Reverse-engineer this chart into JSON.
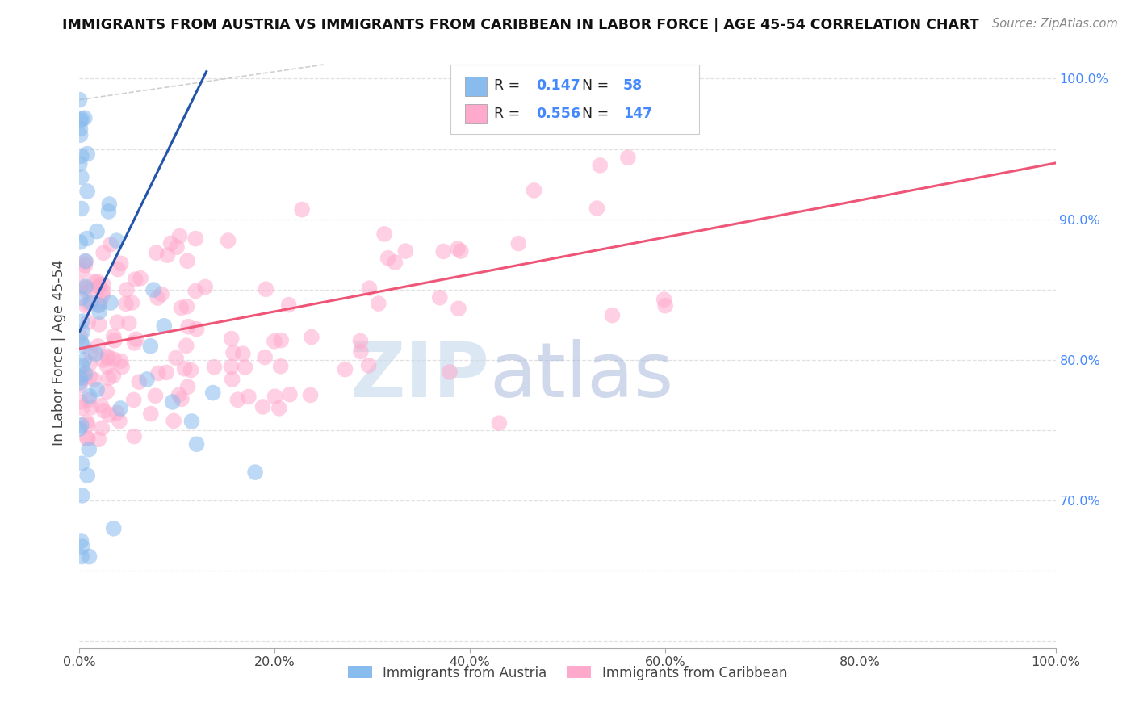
{
  "title": "IMMIGRANTS FROM AUSTRIA VS IMMIGRANTS FROM CARIBBEAN IN LABOR FORCE | AGE 45-54 CORRELATION CHART",
  "source": "Source: ZipAtlas.com",
  "ylabel_left": "In Labor Force | Age 45-54",
  "legend_label1": "Immigrants from Austria",
  "legend_label2": "Immigrants from Caribbean",
  "R1": "0.147",
  "N1": "58",
  "R2": "0.556",
  "N2": "147",
  "xlim": [
    0.0,
    1.0
  ],
  "ylim": [
    0.595,
    1.015
  ],
  "right_yticks": [
    0.7,
    0.8,
    0.9,
    1.0
  ],
  "right_yticklabels": [
    "70.0%",
    "80.0%",
    "90.0%",
    "100.0%"
  ],
  "bottom_xticks": [
    0.0,
    0.2,
    0.4,
    0.6,
    0.8,
    1.0
  ],
  "bottom_xticklabels": [
    "0.0%",
    "20.0%",
    "40.0%",
    "60.0%",
    "80.0%",
    "100.0%"
  ],
  "color_blue": "#88BBEE",
  "color_pink": "#FFAACC",
  "color_blue_line": "#2255AA",
  "color_pink_line": "#EE5577",
  "grid_color": "#DDDDDD",
  "watermark_zip": "ZIP",
  "watermark_atlas": "atlas",
  "austria_trend_x": [
    0.0,
    0.13
  ],
  "austria_trend_y": [
    0.82,
    1.005
  ],
  "carib_trend_x": [
    0.0,
    1.0
  ],
  "carib_trend_y": [
    0.808,
    0.94
  ]
}
